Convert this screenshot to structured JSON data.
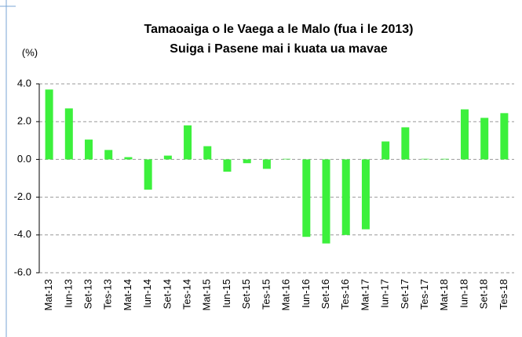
{
  "chart_data": {
    "type": "bar",
    "title": "Tamaoaiga  o le Vaega a le Malo (fua i le 2013)",
    "subtitle": "Suiga i Pasene mai i kuata ua mavae",
    "y_label": "(%)",
    "categories": [
      "Mat-13",
      "Iun-13",
      "Set-13",
      "Tes-13",
      "Mat-14",
      "Iun-14",
      "Set-14",
      "Tes-14",
      "Mat-15",
      "Iun-15",
      "Set-15",
      "Tes-15",
      "Mat-16",
      "Iun-16",
      "Set-16",
      "Tes-16",
      "Mat-17",
      "Iun-17",
      "Set-17",
      "Tes-17",
      "Mat-18",
      "Iun-18",
      "Set-18",
      "Tes-18"
    ],
    "values": [
      3.7,
      2.7,
      1.05,
      0.5,
      0.12,
      -1.6,
      0.2,
      1.8,
      0.7,
      -0.65,
      -0.2,
      -0.5,
      0.03,
      -4.1,
      -4.45,
      -4.0,
      -3.7,
      0.95,
      1.7,
      0.03,
      0.03,
      2.65,
      2.2,
      2.45
    ],
    "color": "#3cf03c",
    "ylim": [
      -6,
      4
    ],
    "yticks": [
      {
        "value": 4,
        "label": "4.0"
      },
      {
        "value": 2,
        "label": "2.0"
      },
      {
        "value": 0,
        "label": "0.0"
      },
      {
        "value": -2,
        "label": "-2.0"
      },
      {
        "value": -4,
        "label": "-4.0"
      },
      {
        "value": -6,
        "label": "-6.0"
      }
    ],
    "grid": true
  }
}
